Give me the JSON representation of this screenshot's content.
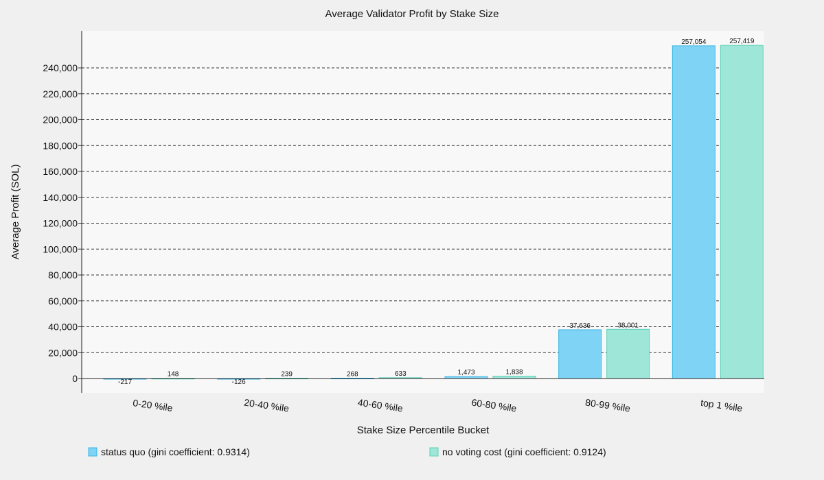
{
  "chart_data": {
    "type": "bar",
    "title": "Average Validator Profit by Stake Size",
    "xlabel": "Stake Size Percentile Bucket",
    "ylabel": "Average Profit (SOL)",
    "categories": [
      "0-20 %ile",
      "20-40 %ile",
      "40-60 %ile",
      "60-80 %ile",
      "80-99 %ile",
      "top 1 %ile"
    ],
    "series": [
      {
        "name": "status quo (gini coefficient: 0.9314)",
        "values": [
          -217,
          -126,
          268,
          1473,
          37636,
          257054
        ],
        "labels": [
          "-217",
          "-126",
          "268",
          "1,473",
          "37,636",
          "257,054"
        ],
        "color": "#7fd4f5",
        "stroke": "#3ab4e2"
      },
      {
        "name": "no voting cost (gini coefficient: 0.9124)",
        "values": [
          148,
          239,
          633,
          1838,
          38001,
          257419
        ],
        "labels": [
          "148",
          "239",
          "633",
          "1,838",
          "38,001",
          "257,419"
        ],
        "color": "#9ee6d8",
        "stroke": "#5ccfb8"
      }
    ],
    "ylim": [
      -11000,
      280000
    ],
    "yticks": [
      0,
      20000,
      40000,
      60000,
      80000,
      100000,
      120000,
      140000,
      160000,
      180000,
      200000,
      220000,
      240000
    ],
    "ytick_labels": [
      "0",
      "20,000",
      "40,000",
      "60,000",
      "80,000",
      "100,000",
      "120,000",
      "140,000",
      "160,000",
      "180,000",
      "200,000",
      "220,000",
      "240,000"
    ],
    "grid": true,
    "legend_position": "bottom"
  }
}
